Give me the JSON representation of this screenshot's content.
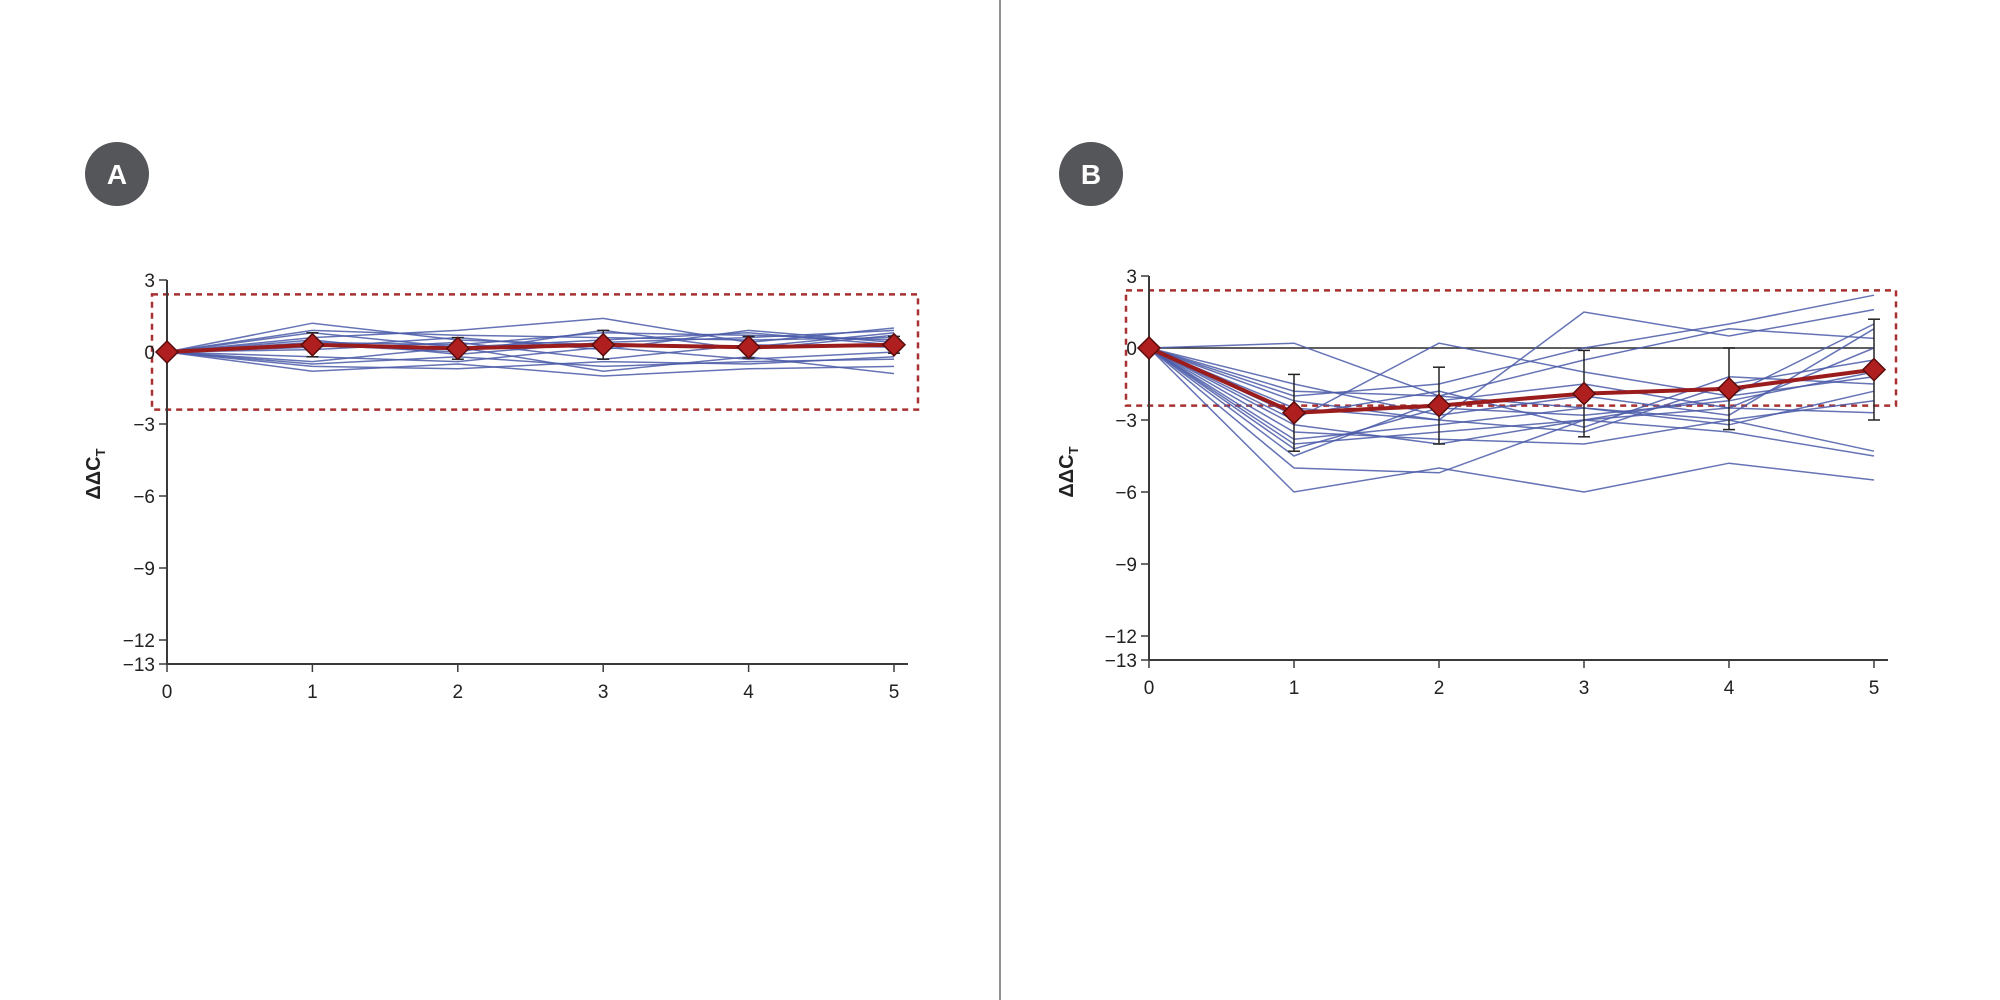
{
  "colors": {
    "background": "#ffffff",
    "badge_fill": "#55565a",
    "badge_text": "#ffffff",
    "divider": "#6e6e6e",
    "axis": "#3a3a3a",
    "individual_line": "#4a5aa8",
    "mean_line": "#9b1c1c",
    "mean_marker": "#b01f1f",
    "mean_marker_edge": "#5a0c0c",
    "error_bar": "#222222",
    "threshold_box": "#a83030"
  },
  "chart_data": [
    {
      "type": "line",
      "panel_label": "A",
      "ylabel": "ΔΔCT",
      "ylabel_main": "ΔΔC",
      "ylabel_sub": "T",
      "xlabel": "",
      "x": [
        0,
        1,
        2,
        3,
        4,
        5
      ],
      "x_tick_labels": [
        "0",
        "1",
        "2",
        "3",
        "4",
        "5"
      ],
      "ylim": [
        -13,
        3
      ],
      "y_ticks": [
        3,
        0,
        -3,
        -6,
        -9,
        -12,
        -13
      ],
      "y_tick_labels": [
        "3",
        "0",
        "−3",
        "−6",
        "−9",
        "−12",
        "−13"
      ],
      "threshold_band": [
        -2.4,
        2.4
      ],
      "grid": false,
      "mean": {
        "values": [
          0,
          0.3,
          0.15,
          0.3,
          0.2,
          0.3
        ],
        "error": [
          0,
          0.5,
          0.45,
          0.6,
          0.45,
          0.35
        ]
      },
      "individuals": [
        [
          0,
          1.2,
          0.5,
          0.3,
          0.2,
          0.8
        ],
        [
          0,
          0.9,
          0.7,
          0.6,
          0.5,
          0.6
        ],
        [
          0,
          0.6,
          0.9,
          1.4,
          0.4,
          1.0
        ],
        [
          0,
          0.4,
          0.3,
          0.8,
          0.7,
          0.5
        ],
        [
          0,
          0.2,
          0.6,
          0.1,
          0.9,
          0.4
        ],
        [
          0,
          -0.2,
          -0.4,
          0.2,
          -0.3,
          0.0
        ],
        [
          0,
          -0.5,
          -0.2,
          -0.6,
          -0.4,
          -0.3
        ],
        [
          0,
          -0.8,
          -0.5,
          -1.0,
          -0.7,
          -0.6
        ],
        [
          0,
          -0.4,
          0.2,
          -0.8,
          -0.2,
          -0.9
        ],
        [
          0,
          0.5,
          -0.1,
          0.4,
          0.6,
          0.9
        ],
        [
          0,
          0.1,
          0.4,
          -0.3,
          0.3,
          0.2
        ],
        [
          0,
          -0.6,
          -0.7,
          -0.4,
          -0.5,
          -0.2
        ],
        [
          0,
          0.3,
          0.0,
          0.9,
          0.1,
          0.7
        ],
        [
          0,
          0.8,
          0.2,
          0.5,
          0.8,
          0.3
        ]
      ]
    },
    {
      "type": "line",
      "panel_label": "B",
      "ylabel": "ΔΔCT",
      "ylabel_main": "ΔΔC",
      "ylabel_sub": "T",
      "xlabel": "",
      "x": [
        0,
        1,
        2,
        3,
        4,
        5
      ],
      "x_tick_labels": [
        "0",
        "1",
        "2",
        "3",
        "4",
        "5"
      ],
      "ylim": [
        -13,
        3
      ],
      "y_ticks": [
        3,
        0,
        -3,
        -6,
        -9,
        -12,
        -13
      ],
      "y_tick_labels": [
        "3",
        "0",
        "−3",
        "−6",
        "−9",
        "−12",
        "−13"
      ],
      "threshold_band": [
        -2.4,
        2.4
      ],
      "grid": false,
      "reference_line": 0,
      "mean": {
        "values": [
          0,
          -2.7,
          -2.4,
          -1.9,
          -1.7,
          -0.9
        ],
        "error": [
          0,
          1.6,
          1.6,
          1.8,
          1.7,
          2.1
        ]
      },
      "individuals": [
        [
          0,
          -2.0,
          -1.5,
          0.0,
          1.0,
          2.2
        ],
        [
          0,
          -2.5,
          -3.0,
          1.5,
          0.5,
          1.6
        ],
        [
          0,
          -3.0,
          0.2,
          -1.0,
          -2.0,
          1.0
        ],
        [
          0,
          -1.8,
          -2.0,
          -0.5,
          0.8,
          0.4
        ],
        [
          0,
          -4.0,
          -3.5,
          -3.0,
          -2.5,
          -2.7
        ],
        [
          0,
          -5.0,
          -5.2,
          -3.0,
          -3.5,
          -4.5
        ],
        [
          0,
          -6.0,
          -5.0,
          -6.0,
          -4.8,
          -5.5
        ],
        [
          0,
          -3.5,
          -3.8,
          -4.0,
          -3.0,
          -4.3
        ],
        [
          0,
          -4.2,
          -2.5,
          -2.8,
          -2.2,
          -1.0
        ],
        [
          0,
          -2.2,
          -3.0,
          -3.5,
          -1.5,
          -0.5
        ],
        [
          0,
          -3.8,
          -3.2,
          -2.5,
          -3.2,
          -1.8
        ],
        [
          0,
          -1.5,
          -2.8,
          -2.0,
          -2.8,
          0.8
        ],
        [
          0,
          -2.8,
          -1.8,
          -3.3,
          -1.2,
          -1.5
        ],
        [
          0,
          0.2,
          -2.0,
          -2.5,
          -3.0,
          -2.2
        ],
        [
          0,
          -3.2,
          -4.0,
          -3.0,
          -2.0,
          -1.2
        ],
        [
          0,
          -4.5,
          -2.2,
          -1.5,
          -2.5,
          0.0
        ]
      ]
    }
  ]
}
